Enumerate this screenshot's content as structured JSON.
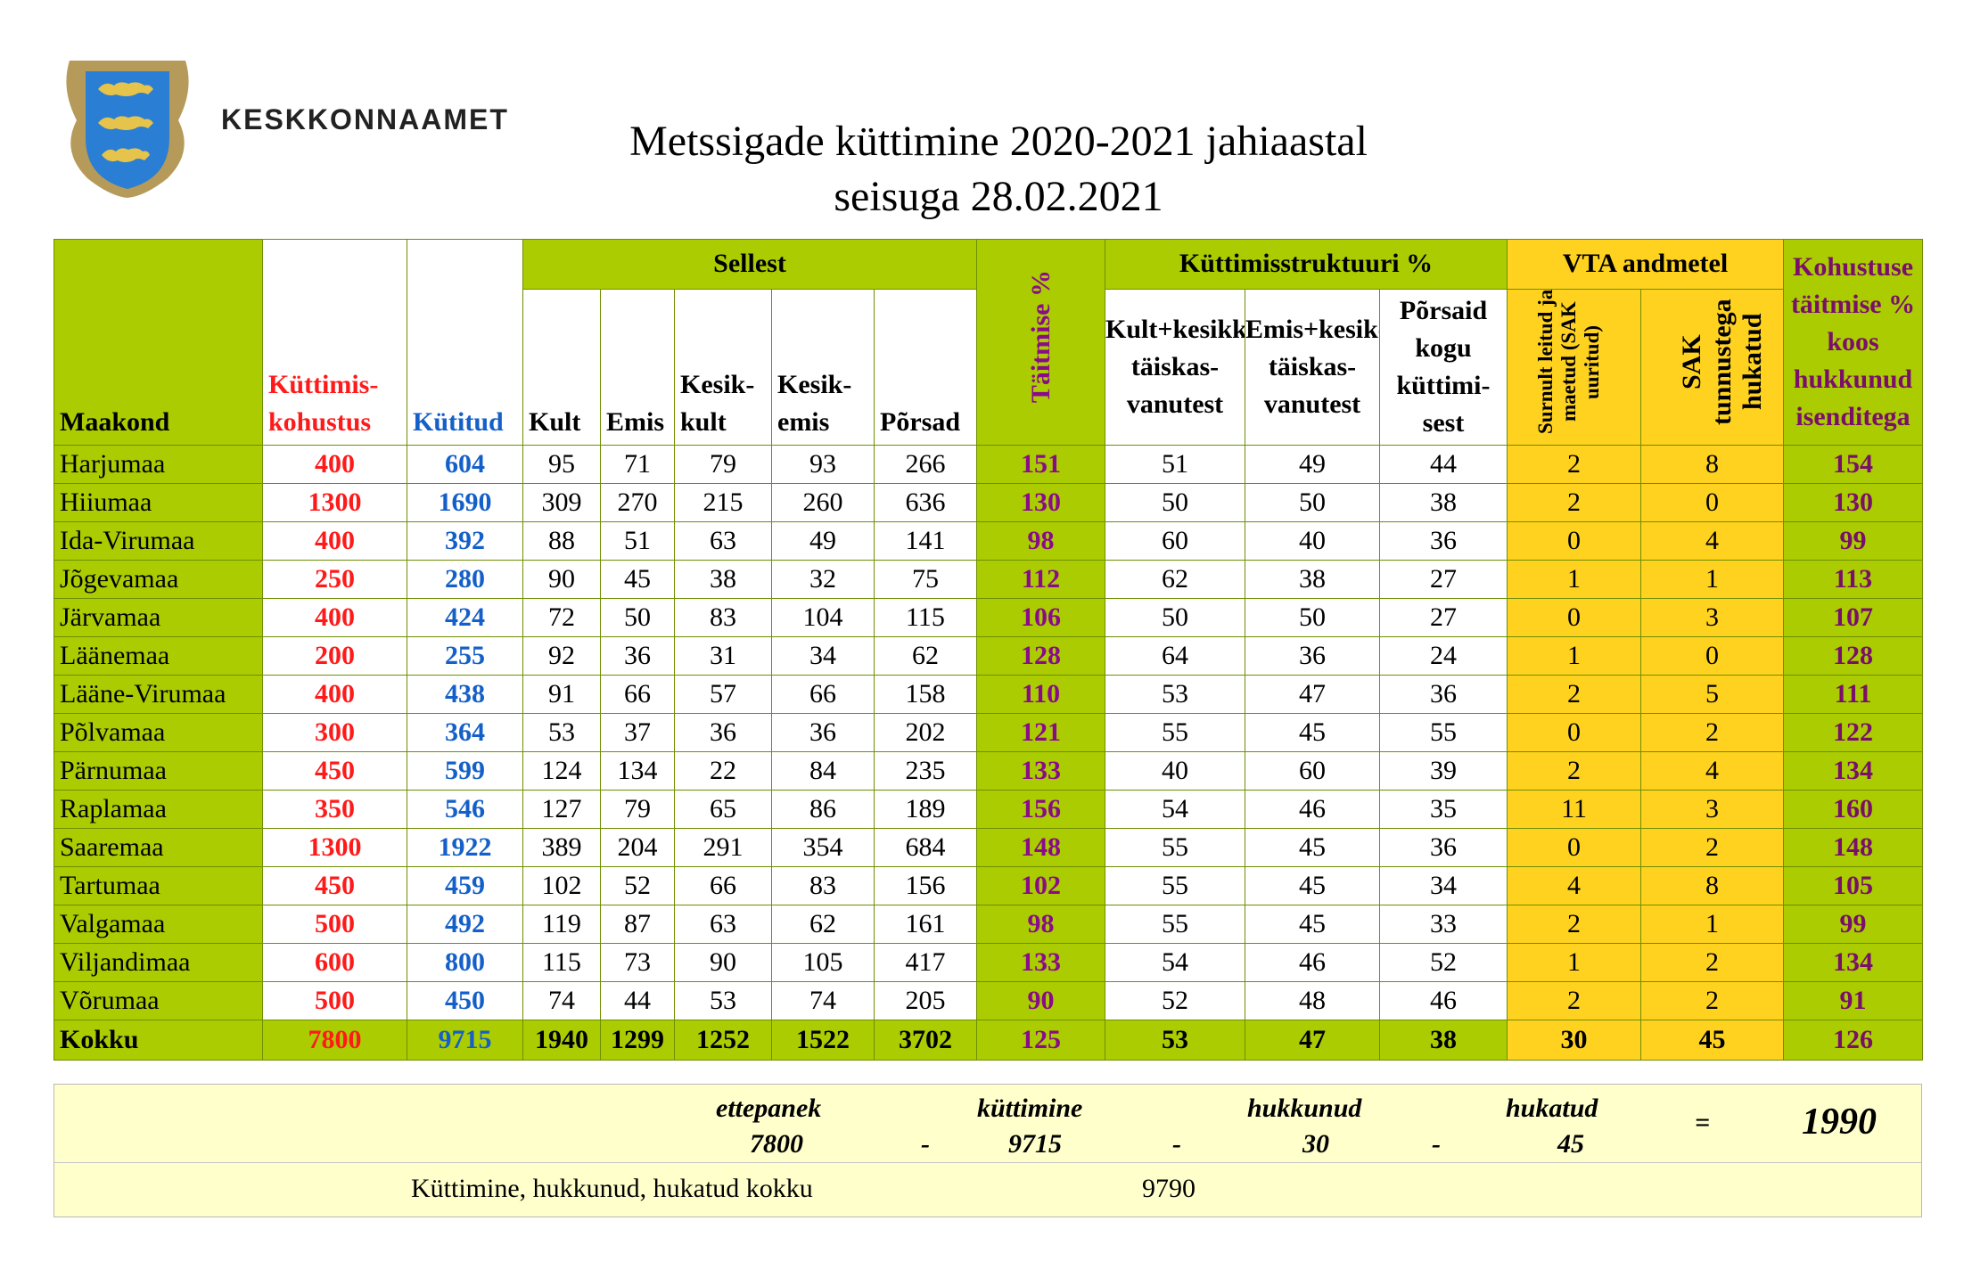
{
  "header": {
    "org_name": "KESKKONNAAMET",
    "title_line1": "Metssigade küttimine 2020-2021 jahiaastal",
    "title_line2": "seisuga 28.02.2021"
  },
  "colors": {
    "green": "#aacc00",
    "yellow": "#ffd21f",
    "red": "#ff1a1a",
    "blue": "#1460c8",
    "purple": "#8a0b8a",
    "note_bg": "#ffffcc"
  },
  "table": {
    "group_headers": {
      "sellest": "Sellest",
      "struktuur": "Küttimisstruktuuri %",
      "vta": "VTA andmetel"
    },
    "columns": {
      "maakond": "Maakond",
      "kohustus": "Küttimis-kohustus",
      "kutitud": "Kütitud",
      "kult": "Kult",
      "emis": "Emis",
      "kesikkult": "Kesik-kult",
      "kesikemis": "Kesik-emis",
      "porsad": "Põrsad",
      "taitmise": "Täitmise %",
      "kultkesi": "Kult+kesikkult täiskas-vanutest",
      "emiskes": "Emis+kesikemis täiskas-vanutest",
      "porsaid": "Põrsaid kogu küttimi-sest",
      "surnult": "Surnult leitud ja maetud (SAK uuritud)",
      "sak": "SAK tunnustega hukatud",
      "kohustuse": "Kohustuse täitmise % koos hukkunud isenditega"
    },
    "rows": [
      [
        "Harjumaa",
        "400",
        "604",
        "95",
        "71",
        "79",
        "93",
        "266",
        "151",
        "51",
        "49",
        "44",
        "2",
        "8",
        "154"
      ],
      [
        "Hiiumaa",
        "1300",
        "1690",
        "309",
        "270",
        "215",
        "260",
        "636",
        "130",
        "50",
        "50",
        "38",
        "2",
        "0",
        "130"
      ],
      [
        "Ida-Virumaa",
        "400",
        "392",
        "88",
        "51",
        "63",
        "49",
        "141",
        "98",
        "60",
        "40",
        "36",
        "0",
        "4",
        "99"
      ],
      [
        "Jõgevamaa",
        "250",
        "280",
        "90",
        "45",
        "38",
        "32",
        "75",
        "112",
        "62",
        "38",
        "27",
        "1",
        "1",
        "113"
      ],
      [
        "Järvamaa",
        "400",
        "424",
        "72",
        "50",
        "83",
        "104",
        "115",
        "106",
        "50",
        "50",
        "27",
        "0",
        "3",
        "107"
      ],
      [
        "Läänemaa",
        "200",
        "255",
        "92",
        "36",
        "31",
        "34",
        "62",
        "128",
        "64",
        "36",
        "24",
        "1",
        "0",
        "128"
      ],
      [
        "Lääne-Virumaa",
        "400",
        "438",
        "91",
        "66",
        "57",
        "66",
        "158",
        "110",
        "53",
        "47",
        "36",
        "2",
        "5",
        "111"
      ],
      [
        "Põlvamaa",
        "300",
        "364",
        "53",
        "37",
        "36",
        "36",
        "202",
        "121",
        "55",
        "45",
        "55",
        "0",
        "2",
        "122"
      ],
      [
        "Pärnumaa",
        "450",
        "599",
        "124",
        "134",
        "22",
        "84",
        "235",
        "133",
        "40",
        "60",
        "39",
        "2",
        "4",
        "134"
      ],
      [
        "Raplamaa",
        "350",
        "546",
        "127",
        "79",
        "65",
        "86",
        "189",
        "156",
        "54",
        "46",
        "35",
        "11",
        "3",
        "160"
      ],
      [
        "Saaremaa",
        "1300",
        "1922",
        "389",
        "204",
        "291",
        "354",
        "684",
        "148",
        "55",
        "45",
        "36",
        "0",
        "2",
        "148"
      ],
      [
        "Tartumaa",
        "450",
        "459",
        "102",
        "52",
        "66",
        "83",
        "156",
        "102",
        "55",
        "45",
        "34",
        "4",
        "8",
        "105"
      ],
      [
        "Valgamaa",
        "500",
        "492",
        "119",
        "87",
        "63",
        "62",
        "161",
        "98",
        "55",
        "45",
        "33",
        "2",
        "1",
        "99"
      ],
      [
        "Viljandimaa",
        "600",
        "800",
        "115",
        "73",
        "90",
        "105",
        "417",
        "133",
        "54",
        "46",
        "52",
        "1",
        "2",
        "134"
      ],
      [
        "Võrumaa",
        "500",
        "450",
        "74",
        "44",
        "53",
        "74",
        "205",
        "90",
        "52",
        "48",
        "46",
        "2",
        "2",
        "91"
      ]
    ],
    "total": [
      "Kokku",
      "7800",
      "9715",
      "1940",
      "1299",
      "1252",
      "1522",
      "3702",
      "125",
      "53",
      "47",
      "38",
      "30",
      "45",
      "126"
    ]
  },
  "summary": {
    "labels": {
      "ettepanek": "ettepanek",
      "kuttimine": "küttimine",
      "hukkunud": "hukkunud",
      "hukatud": "hukatud"
    },
    "values": {
      "ettepanek": "7800",
      "kuttimine": "9715",
      "hukkunud": "30",
      "hukatud": "45"
    },
    "minus": "-",
    "equals": "=",
    "result": "1990",
    "total_label": "Küttimine, hukkunud, hukatud kokku",
    "total_value": "9790"
  }
}
